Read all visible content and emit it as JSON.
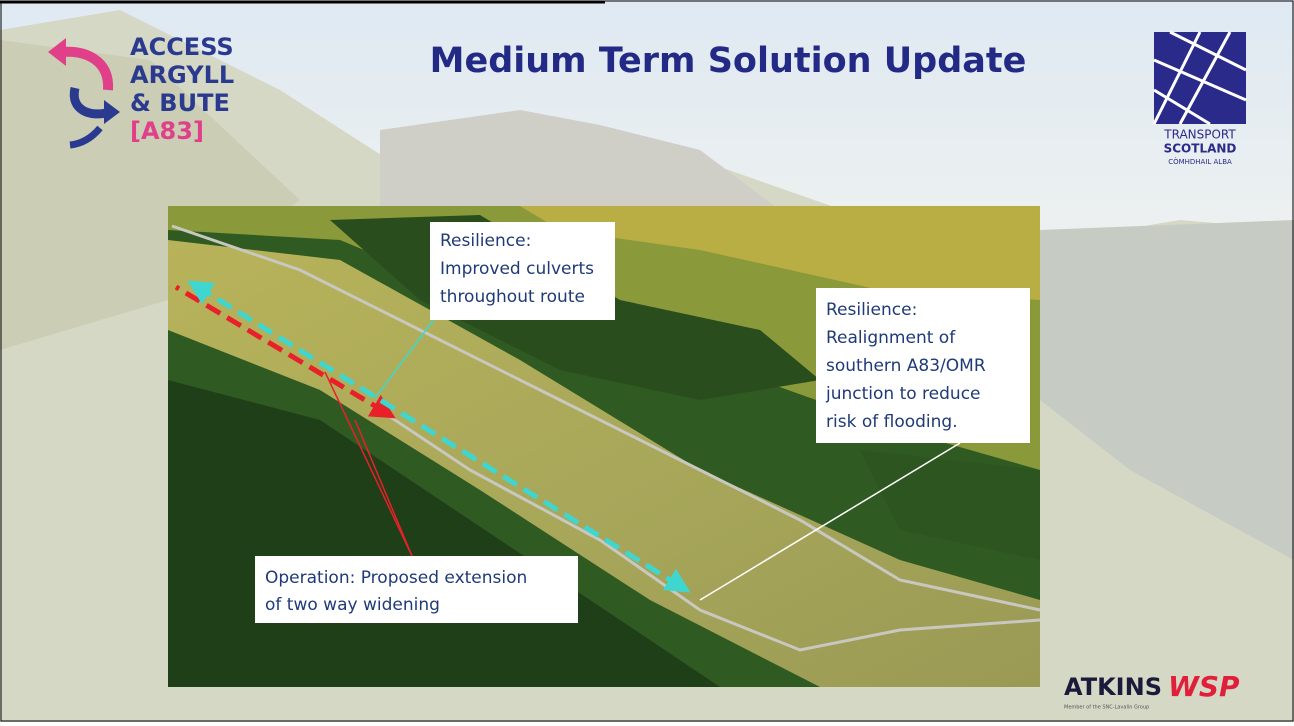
{
  "header": {
    "title": "Medium Term Solution Update"
  },
  "logos": {
    "access": [
      "ACCESS",
      "ARGYLL",
      "& BUTE",
      "[A83]"
    ],
    "transport_scotland": [
      "TRANSPORT",
      "SCOTLAND",
      "CÒMHDHAIL ALBA"
    ],
    "atkins": "ATKINS",
    "wsp": "WSP",
    "atkins_note": "Member of the SNC-Lavalin Group"
  },
  "callouts": [
    {
      "lines": [
        "Resilience:",
        "Improved culverts",
        "throughout route"
      ]
    },
    {
      "lines": [
        "Resilience:",
        "Realignment of",
        "southern A83/OMR",
        "junction to reduce",
        "risk of flooding."
      ]
    },
    {
      "lines": [
        "Operation: Proposed extension",
        "of two way widening"
      ]
    }
  ]
}
